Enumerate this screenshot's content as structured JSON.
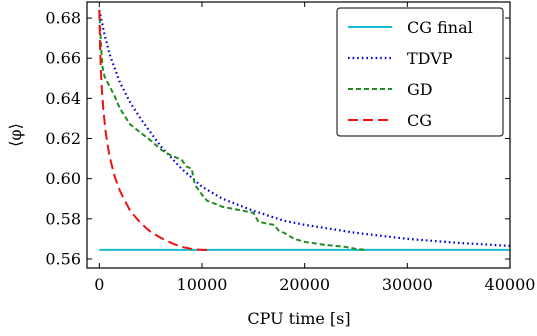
{
  "chart_data": {
    "type": "line",
    "title": "",
    "xlabel": "CPU time [s]",
    "ylabel": "⟨φ⟩",
    "xlim": [
      -1200,
      40000
    ],
    "ylim": [
      0.5555,
      0.688
    ],
    "x_ticks": [
      0,
      10000,
      20000,
      30000,
      40000
    ],
    "x_tick_labels": [
      "0",
      "10000",
      "20000",
      "30000",
      "40000"
    ],
    "y_ticks": [
      0.56,
      0.58,
      0.6,
      0.62,
      0.64,
      0.66,
      0.68
    ],
    "y_tick_labels": [
      "0.56",
      "0.58",
      "0.60",
      "0.62",
      "0.64",
      "0.66",
      "0.68"
    ],
    "grid": false,
    "legend_position": "top-right",
    "series": [
      {
        "name": "CG final",
        "color": "#17becf",
        "style": "solid",
        "x": [
          0,
          40000
        ],
        "y": [
          0.5645,
          0.5645
        ]
      },
      {
        "name": "TDVP",
        "color": "#0000dd",
        "style": "dotted",
        "x": [
          0,
          500,
          1000,
          2000,
          3000,
          4000,
          6000,
          8000,
          10000,
          12000,
          15000,
          18000,
          20000,
          25000,
          30000,
          35000,
          40000
        ],
        "y": [
          0.684,
          0.672,
          0.662,
          0.648,
          0.638,
          0.63,
          0.616,
          0.605,
          0.596,
          0.59,
          0.584,
          0.579,
          0.577,
          0.573,
          0.57,
          0.568,
          0.5665
        ]
      },
      {
        "name": "GD",
        "color": "#228B22",
        "style": "dashed",
        "x": [
          0,
          150,
          300,
          500,
          1000,
          1500,
          2000,
          3000,
          4000,
          5000,
          6000,
          7000,
          8000,
          8500,
          9000,
          9300,
          10000,
          10500,
          11000,
          12000,
          13000,
          14000,
          15000,
          15500,
          16000,
          17000,
          17500,
          18000,
          19000,
          20000,
          22000,
          24000,
          25000,
          26000
        ],
        "y": [
          0.684,
          0.668,
          0.656,
          0.651,
          0.646,
          0.641,
          0.635,
          0.627,
          0.623,
          0.619,
          0.6145,
          0.6115,
          0.6095,
          0.606,
          0.605,
          0.597,
          0.592,
          0.589,
          0.588,
          0.586,
          0.585,
          0.584,
          0.583,
          0.5785,
          0.578,
          0.577,
          0.574,
          0.573,
          0.57,
          0.5685,
          0.567,
          0.566,
          0.565,
          0.5645
        ]
      },
      {
        "name": "CG",
        "color": "#ee1111",
        "style": "dashed",
        "x": [
          0,
          30,
          80,
          150,
          250,
          400,
          600,
          800,
          1000,
          1500,
          2000,
          3000,
          4000,
          5000,
          6000,
          7000,
          8000,
          9000,
          10000,
          11000
        ],
        "y": [
          0.684,
          0.676,
          0.664,
          0.654,
          0.644,
          0.634,
          0.624,
          0.617,
          0.611,
          0.601,
          0.594,
          0.584,
          0.578,
          0.5735,
          0.5705,
          0.568,
          0.566,
          0.565,
          0.5645,
          0.5645
        ]
      }
    ]
  }
}
